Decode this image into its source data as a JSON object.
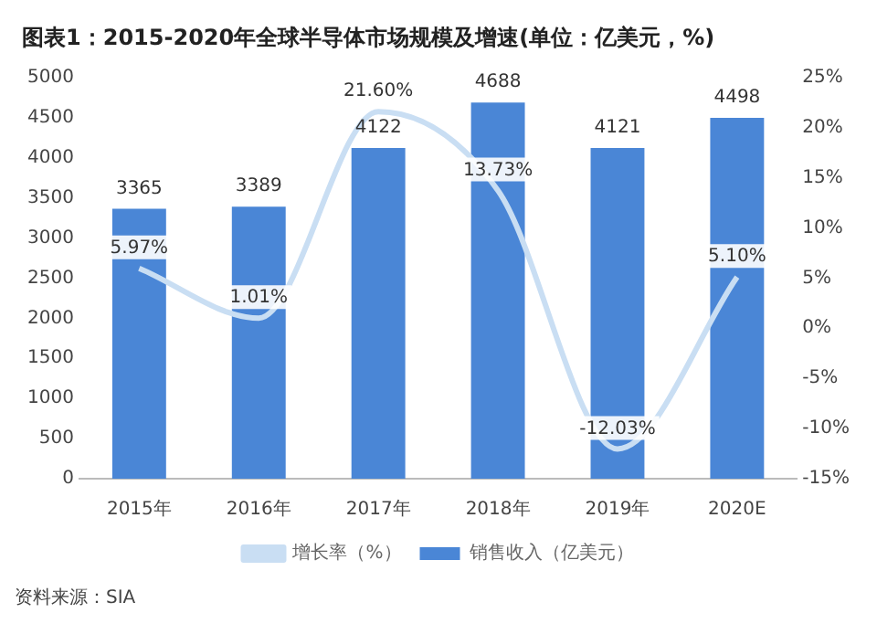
{
  "chart_data": {
    "type": "bar",
    "title": "图表1：2015-2020年全球半导体市场规模及增速(单位：亿美元，%)",
    "categories": [
      "2015年",
      "2016年",
      "2017年",
      "2018年",
      "2019年",
      "2020E"
    ],
    "series": [
      {
        "name": "销售收入（亿美元）",
        "color": "#4a86d6",
        "values": [
          3365,
          3389,
          4122,
          4688,
          4121,
          4498
        ]
      },
      {
        "name": "增长率（%）",
        "type": "line",
        "axis": "y2",
        "color": "#c9def3",
        "values": [
          5.97,
          1.01,
          21.6,
          13.73,
          -12.03,
          5.1
        ],
        "value_labels": [
          "5.97%",
          "1.01%",
          "21.60%",
          "13.73%",
          "-12.03%",
          "5.10%"
        ]
      }
    ],
    "ylim": [
      0,
      5000
    ],
    "yticks": [
      0,
      500,
      1000,
      1500,
      2000,
      2500,
      3000,
      3500,
      4000,
      4500,
      5000
    ],
    "y2lim": [
      -15,
      25
    ],
    "y2ticks": [
      {
        "value": -15,
        "label": "-15%"
      },
      {
        "value": -10,
        "label": "-10%"
      },
      {
        "value": -5,
        "label": "-5%"
      },
      {
        "value": 0,
        "label": "0%"
      },
      {
        "value": 5,
        "label": "5%"
      },
      {
        "value": 10,
        "label": "10%"
      },
      {
        "value": 15,
        "label": "15%"
      },
      {
        "value": 20,
        "label": "20%"
      },
      {
        "value": 25,
        "label": "25%"
      }
    ],
    "data_labels": true,
    "legend": "bottom",
    "marker": "none",
    "line_style": "solid",
    "annotations": [
      "资料来源：SIA"
    ]
  }
}
